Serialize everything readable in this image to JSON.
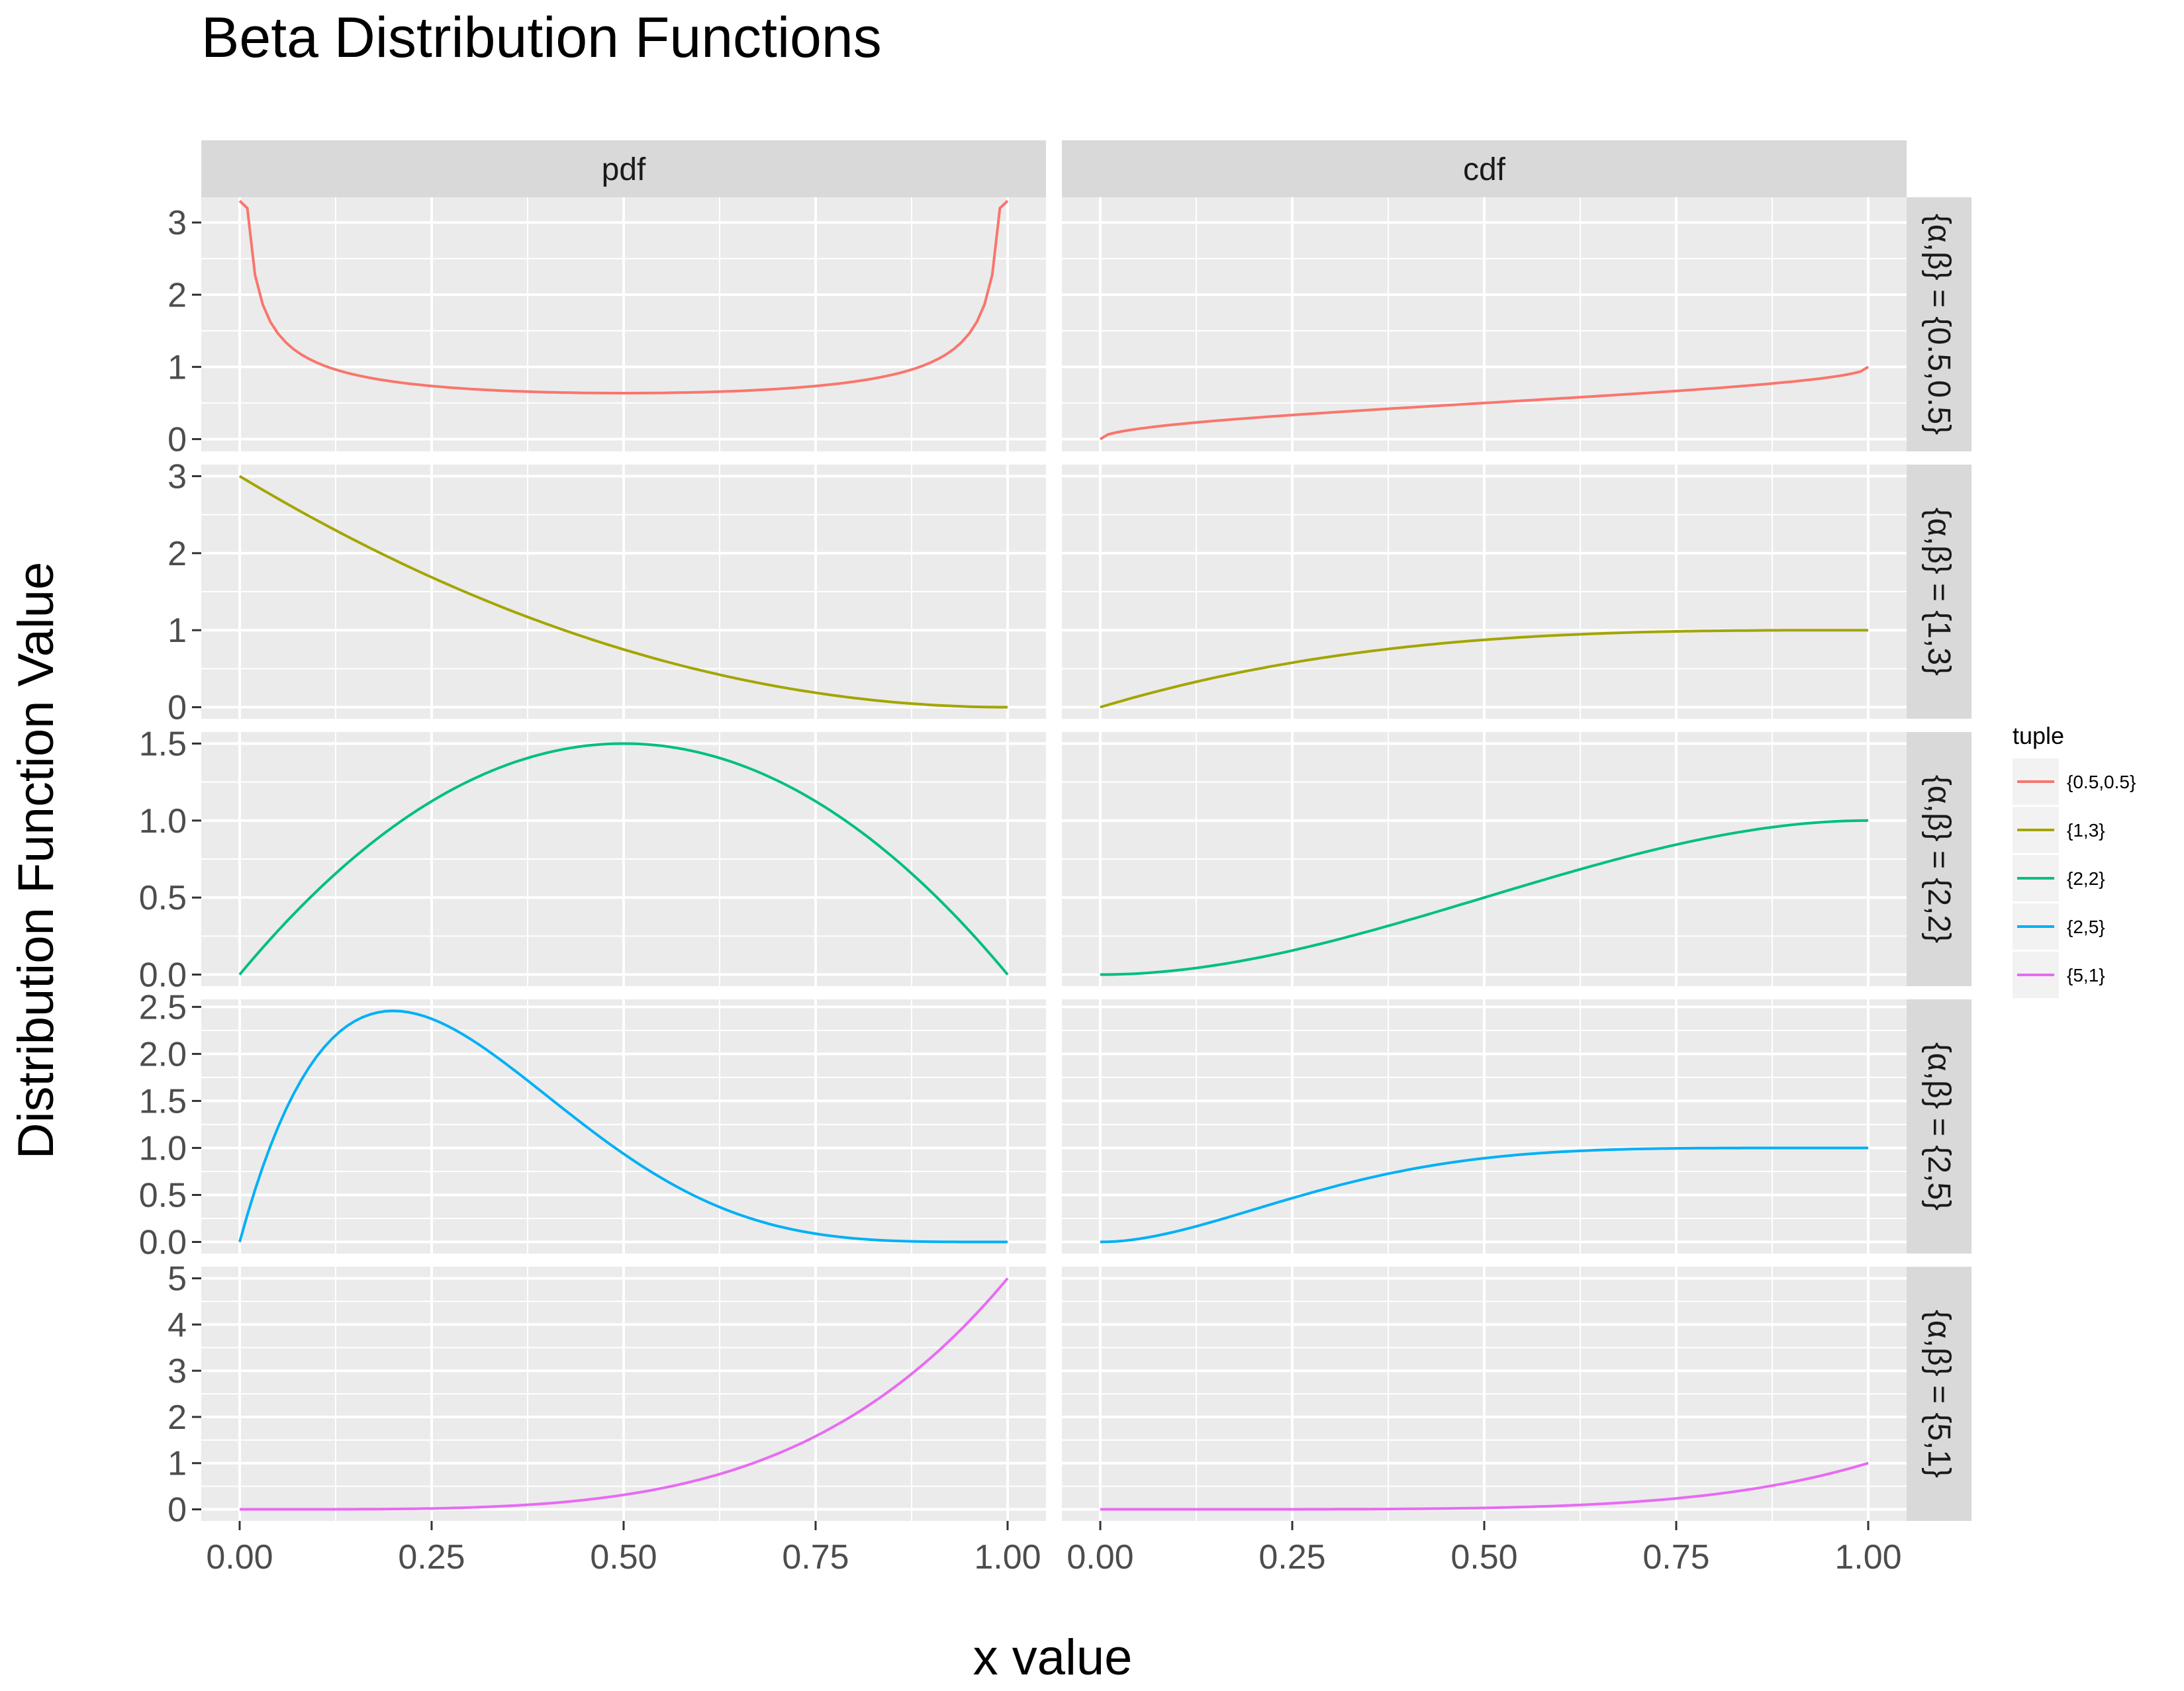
{
  "chart_data": {
    "type": "line",
    "title": "Beta Distribution Functions",
    "xlabel": "x value",
    "ylabel": "Distribution Function Value",
    "columns": [
      "pdf",
      "cdf"
    ],
    "row_label_prefix": "{α,β} = ",
    "x_ticks": [
      "0.00",
      "0.25",
      "0.50",
      "0.75",
      "1.00"
    ],
    "xlim": [
      0,
      1
    ],
    "legend": {
      "title": "tuple",
      "position": "right"
    },
    "grid": true,
    "rows": [
      {
        "tuple": "{0.5,0.5}",
        "label": "{0.5,0.5}",
        "color": "#F8766D",
        "alpha": 0.5,
        "beta": 0.5,
        "ylim": [
          -0.17,
          3.35
        ],
        "y_ticks": [
          0,
          1,
          2,
          3
        ],
        "y_tick_labels": [
          "0",
          "1",
          "2",
          "3"
        ],
        "pdf_clip": 3.3
      },
      {
        "tuple": "{1,3}",
        "label": "{1,3}",
        "color": "#A3A500",
        "alpha": 1,
        "beta": 3,
        "ylim": [
          -0.15,
          3.15
        ],
        "y_ticks": [
          0,
          1,
          2,
          3
        ],
        "y_tick_labels": [
          "0",
          "1",
          "2",
          "3"
        ]
      },
      {
        "tuple": "{2,2}",
        "label": "{2,2}",
        "color": "#00BF7D",
        "alpha": 2,
        "beta": 2,
        "ylim": [
          -0.075,
          1.575
        ],
        "y_ticks": [
          0,
          0.5,
          1.0,
          1.5
        ],
        "y_tick_labels": [
          "0.0",
          "0.5",
          "1.0",
          "1.5"
        ]
      },
      {
        "tuple": "{2,5}",
        "label": "{2,5}",
        "color": "#00B0F6",
        "alpha": 2,
        "beta": 5,
        "ylim": [
          -0.123,
          2.58
        ],
        "y_ticks": [
          0,
          0.5,
          1.0,
          1.5,
          2.0,
          2.5
        ],
        "y_tick_labels": [
          "0.0",
          "0.5",
          "1.0",
          "1.5",
          "2.0",
          "2.5"
        ]
      },
      {
        "tuple": "{5,1}",
        "label": "{5,1}",
        "color": "#E76BF3",
        "alpha": 5,
        "beta": 1,
        "ylim": [
          -0.25,
          5.25
        ],
        "y_ticks": [
          0,
          1,
          2,
          3,
          4,
          5
        ],
        "y_tick_labels": [
          "0",
          "1",
          "2",
          "3",
          "4",
          "5"
        ]
      }
    ]
  }
}
